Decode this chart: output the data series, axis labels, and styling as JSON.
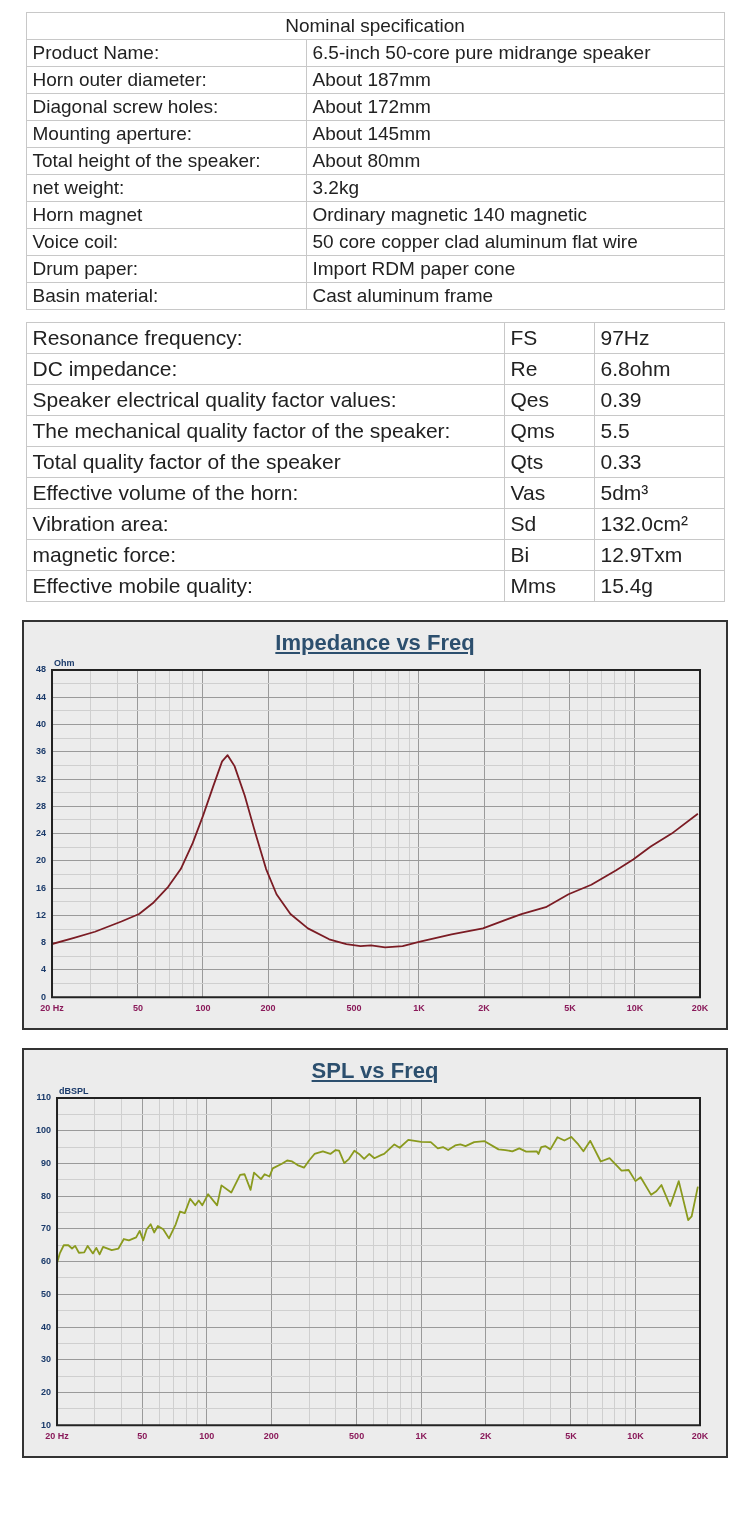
{
  "chart_data": [
    {
      "type": "other",
      "title": "Nominal specification",
      "annotations": [
        "Product Name:",
        "6.5-inch 50-core pure midrange speaker",
        "Horn outer diameter:",
        "About 187mm",
        "Diagonal screw holes:",
        "About 172mm",
        "Mounting aperture:",
        "About 145mm",
        "Total height of the speaker:",
        "About 80mm",
        "net weight:",
        "3.2kg",
        "Horn magnet",
        "Ordinary magnetic 140 magnetic",
        "Voice coil:",
        "50 core copper clad aluminum flat wire",
        "Drum paper:",
        "Import RDM paper cone",
        "Basin material:",
        "Cast aluminum frame"
      ]
    },
    {
      "type": "other",
      "annotations": [
        "Resonance frequency:",
        "FS",
        "97Hz",
        "DC impedance:",
        "Re",
        "6.8ohm",
        "Speaker electrical quality factor values:",
        "Qes",
        "0.39",
        "The mechanical quality factor of the speaker:",
        "Qms",
        "5.5",
        "Total quality factor of the speaker",
        "Qts",
        "0.33",
        "Effective volume of the horn:",
        "Vas",
        "5dm³",
        "Vibration area:",
        "Sd",
        "132.0cm²",
        "magnetic force:",
        "Bi",
        "12.9Txm",
        "Effective mobile quality:",
        "Mms",
        "15.4g"
      ]
    },
    {
      "type": "line",
      "title": "Impedance vs Freq",
      "ylabel": "Ohm",
      "log": "x",
      "grid": true,
      "marker": "none",
      "xlim": [
        20,
        20000
      ],
      "xticks": [
        {
          "value": 20,
          "label": "20 Hz"
        },
        {
          "value": 30,
          "label": null
        },
        {
          "value": 40,
          "label": null
        },
        50,
        {
          "value": 60,
          "label": null
        },
        {
          "value": 70,
          "label": null
        },
        {
          "value": 80,
          "label": null
        },
        {
          "value": 90,
          "label": null
        },
        100,
        200,
        {
          "value": 300,
          "label": null
        },
        {
          "value": 400,
          "label": null
        },
        500,
        {
          "value": 600,
          "label": null
        },
        {
          "value": 700,
          "label": null
        },
        {
          "value": 800,
          "label": null
        },
        {
          "value": 900,
          "label": null
        },
        {
          "value": 1000,
          "label": "1K"
        },
        {
          "value": 2000,
          "label": "2K"
        },
        {
          "value": 3000,
          "label": null
        },
        {
          "value": 4000,
          "label": null
        },
        {
          "value": 5000,
          "label": "5K"
        },
        {
          "value": 6000,
          "label": null
        },
        {
          "value": 7000,
          "label": null
        },
        {
          "value": 8000,
          "label": null
        },
        {
          "value": 9000,
          "label": null
        },
        {
          "value": 10000,
          "label": "10K"
        },
        {
          "value": 20000,
          "label": "20K"
        }
      ],
      "ylim": [
        0,
        48
      ],
      "yticks": [
        0,
        {
          "value": 2,
          "label": null
        },
        4,
        {
          "value": 6,
          "label": null
        },
        8,
        {
          "value": 10,
          "label": null
        },
        12,
        {
          "value": 14,
          "label": null
        },
        16,
        {
          "value": 18,
          "label": null
        },
        20,
        {
          "value": 22,
          "label": null
        },
        24,
        {
          "value": 26,
          "label": null
        },
        28,
        {
          "value": 30,
          "label": null
        },
        32,
        {
          "value": 34,
          "label": null
        },
        36,
        {
          "value": 38,
          "label": null
        },
        40,
        {
          "value": 42,
          "label": null
        },
        44,
        {
          "value": 46,
          "label": null
        },
        48
      ],
      "series": [
        {
          "color": "#7b1c24",
          "x": [
            20,
            25.3,
            31.6,
            41.9,
            50.6,
            59.1,
            69,
            78.9,
            89.6,
            100,
            111.7,
            122.6,
            130,
            140,
            156,
            175,
            196,
            219,
            254,
            306,
            384,
            461,
            536,
            600,
            697,
            840,
            1000,
            1415,
            1978,
            2980,
            3865,
            4924,
            6280,
            8150,
            9810,
            11830,
            14790,
            19550
          ],
          "values": [
            7.8,
            8.7,
            9.6,
            11.1,
            12.2,
            13.9,
            16.2,
            18.8,
            22.6,
            26.6,
            31,
            34.6,
            35.5,
            33.9,
            29.6,
            24,
            18.8,
            15.1,
            12.2,
            10.1,
            8.5,
            7.8,
            7.5,
            7.6,
            7.3,
            7.5,
            8.1,
            9.2,
            10.1,
            12.2,
            13.2,
            15.1,
            16.5,
            18.6,
            20.2,
            22.1,
            24,
            26.9
          ]
        }
      ]
    },
    {
      "type": "line",
      "title": "SPL vs Freq",
      "ylabel": "dBSPL",
      "log": "x",
      "grid": true,
      "marker": "none",
      "xlim": [
        20,
        20000
      ],
      "xticks": [
        {
          "value": 20,
          "label": "20 Hz"
        },
        {
          "value": 30,
          "label": null
        },
        {
          "value": 40,
          "label": null
        },
        50,
        {
          "value": 60,
          "label": null
        },
        {
          "value": 70,
          "label": null
        },
        {
          "value": 80,
          "label": null
        },
        {
          "value": 90,
          "label": null
        },
        100,
        200,
        {
          "value": 300,
          "label": null
        },
        {
          "value": 400,
          "label": null
        },
        500,
        {
          "value": 600,
          "label": null
        },
        {
          "value": 700,
          "label": null
        },
        {
          "value": 800,
          "label": null
        },
        {
          "value": 900,
          "label": null
        },
        {
          "value": 1000,
          "label": "1K"
        },
        {
          "value": 2000,
          "label": "2K"
        },
        {
          "value": 3000,
          "label": null
        },
        {
          "value": 4000,
          "label": null
        },
        {
          "value": 5000,
          "label": "5K"
        },
        {
          "value": 6000,
          "label": null
        },
        {
          "value": 7000,
          "label": null
        },
        {
          "value": 8000,
          "label": null
        },
        {
          "value": 9000,
          "label": null
        },
        {
          "value": 10000,
          "label": "10K"
        },
        {
          "value": 20000,
          "label": "20K"
        }
      ],
      "ylim": [
        10,
        110
      ],
      "yticks": [
        10,
        {
          "value": 15,
          "label": null
        },
        20,
        {
          "value": 25,
          "label": null
        },
        30,
        {
          "value": 35,
          "label": null
        },
        40,
        {
          "value": 45,
          "label": null
        },
        50,
        {
          "value": 55,
          "label": null
        },
        60,
        {
          "value": 65,
          "label": null
        },
        70,
        {
          "value": 75,
          "label": null
        },
        80,
        {
          "value": 85,
          "label": null
        },
        90,
        {
          "value": 95,
          "label": null
        },
        100,
        {
          "value": 105,
          "label": null
        },
        110
      ],
      "series": [
        {
          "color": "#8a9a1e",
          "x": [
            20,
            20.6,
            21.5,
            22.6,
            23.5,
            24.3,
            25.3,
            26.8,
            27.8,
            29.4,
            30.5,
            31.6,
            32.8,
            36,
            38.7,
            41,
            43.3,
            46.8,
            48.6,
            50.5,
            52.4,
            54.7,
            56.8,
            59.1,
            62.6,
            66.6,
            71.6,
            75,
            78.9,
            83.6,
            88.3,
            91.7,
            95.2,
            101.4,
            111.7,
            117,
            130,
            143,
            150,
            160,
            166,
            179,
            186,
            196,
            203,
            224,
            237,
            250,
            265,
            284,
            300,
            318,
            348,
            377,
            399,
            414,
            438,
            461,
            488,
            513,
            542,
            573,
            605,
            653,
            672,
            750,
            794,
            871,
            1000,
            1109,
            1196,
            1265,
            1337,
            1441,
            1524,
            1611,
            1767,
            1977,
            2296,
            2473,
            2663,
            2870,
            3090,
            3461,
            3526,
            3633,
            3793,
            4009,
            4324,
            4659,
            5015,
            5410,
            5716,
            6153,
            6886,
            7568,
            8611,
            9290,
            10000,
            10570,
            11830,
            12510,
            13220,
            14520,
            15920,
            17610,
            18280,
            19550
          ],
          "values": [
            59.6,
            62.5,
            65,
            65,
            64,
            64.8,
            62.7,
            62.8,
            64.8,
            62.5,
            64.2,
            62.2,
            64.5,
            63.5,
            64,
            66.9,
            66.5,
            67.4,
            69.4,
            66.5,
            69.9,
            71.4,
            68.9,
            70.9,
            69.9,
            67.1,
            71.4,
            75.3,
            74.8,
            79.2,
            77.2,
            78.7,
            77.2,
            80.6,
            77.2,
            83.3,
            81.1,
            86.5,
            86.7,
            81.9,
            87.2,
            85.2,
            86.7,
            86,
            88.5,
            89.9,
            90.9,
            90.6,
            89.5,
            88.7,
            90.9,
            92.9,
            93.7,
            92.9,
            94.1,
            93.9,
            90.1,
            91.4,
            93.9,
            92.9,
            91.4,
            92.9,
            91.6,
            92.6,
            92.9,
            95.8,
            94.8,
            97.2,
            96.6,
            96.5,
            94.6,
            95,
            94.1,
            95.5,
            95.8,
            95.3,
            96.5,
            96.8,
            94.3,
            94.1,
            93.7,
            94.6,
            93.6,
            93.7,
            92.9,
            95,
            95.3,
            94.3,
            98,
            97,
            98.1,
            95.8,
            93.7,
            96.9,
            90.6,
            91.6,
            87.8,
            88,
            84.6,
            85.8,
            80.4,
            81.5,
            83.4,
            77,
            84.6,
            72.7,
            73.8,
            82.9
          ]
        }
      ]
    }
  ]
}
